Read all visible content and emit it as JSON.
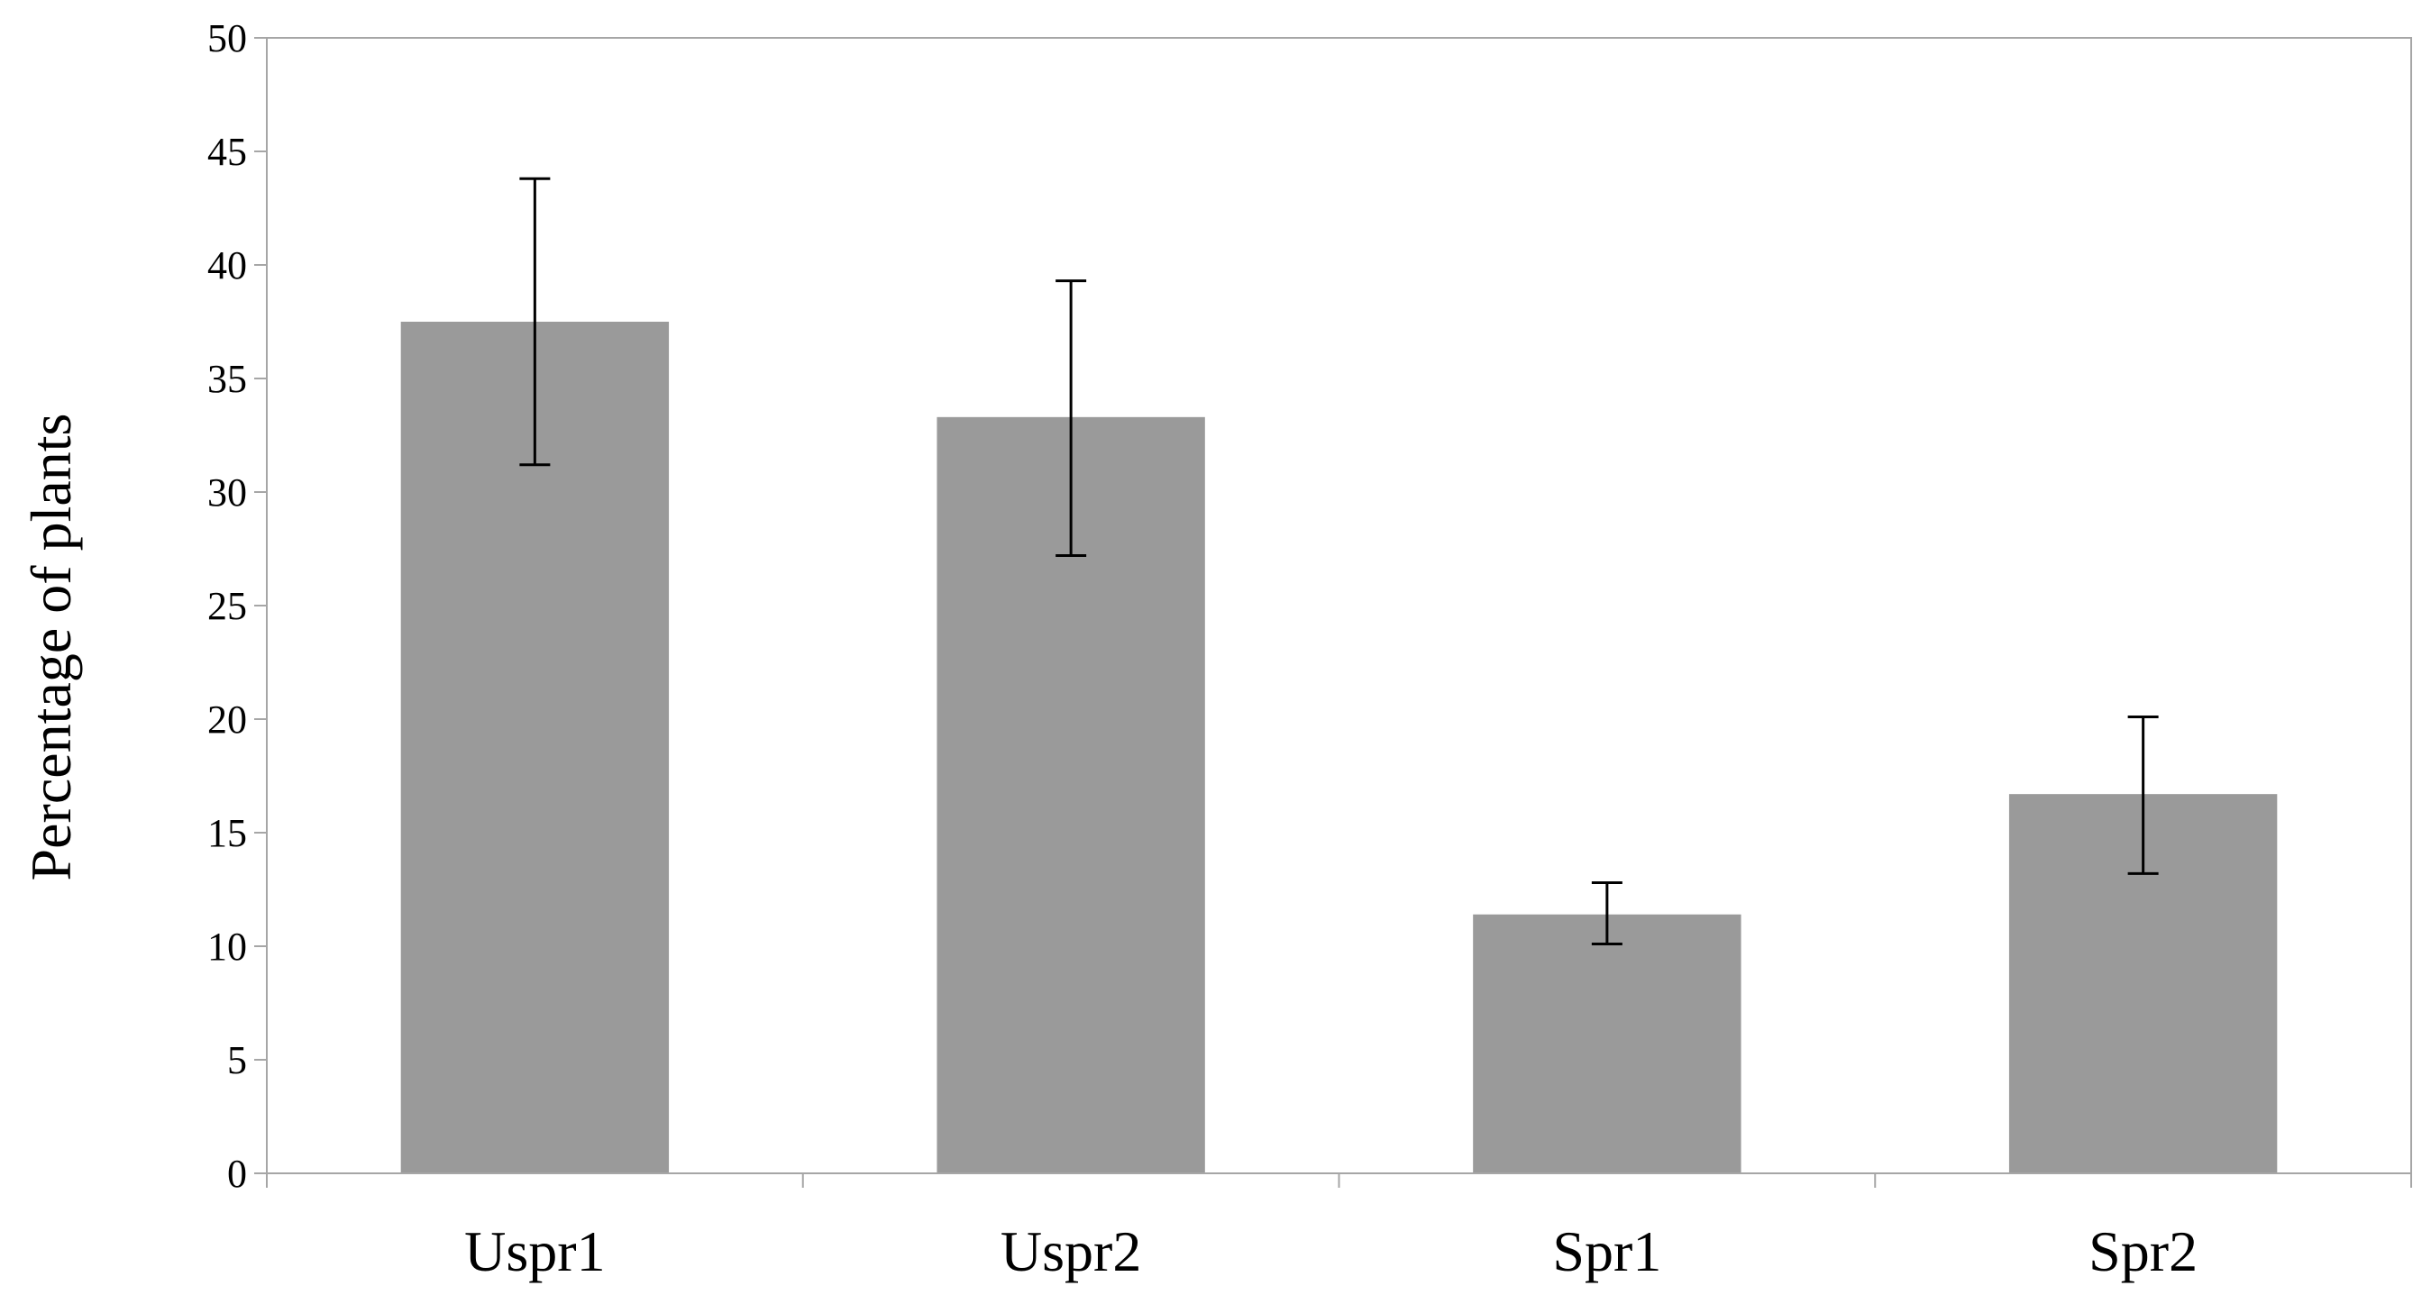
{
  "chart_data": {
    "type": "bar",
    "title": "",
    "xlabel": "",
    "ylabel": "Percentage of plants",
    "categories": [
      "Uspr1",
      "Uspr2",
      "Spr1",
      "Spr2"
    ],
    "values": [
      37.5,
      33.3,
      11.4,
      16.7
    ],
    "error_low": [
      31.2,
      27.2,
      10.1,
      13.2
    ],
    "error_high": [
      43.8,
      39.3,
      12.8,
      20.1
    ],
    "ylim": [
      0,
      50
    ],
    "yticks": [
      0,
      5,
      10,
      15,
      20,
      25,
      30,
      35,
      40,
      45,
      50
    ],
    "grid": false,
    "legend": "none",
    "colors": {
      "bar": "#9a9a9a",
      "axis": "#a6a6a6",
      "plot_border": "#a6a6a6",
      "error_bar": "#000000",
      "text": "#000000"
    }
  }
}
